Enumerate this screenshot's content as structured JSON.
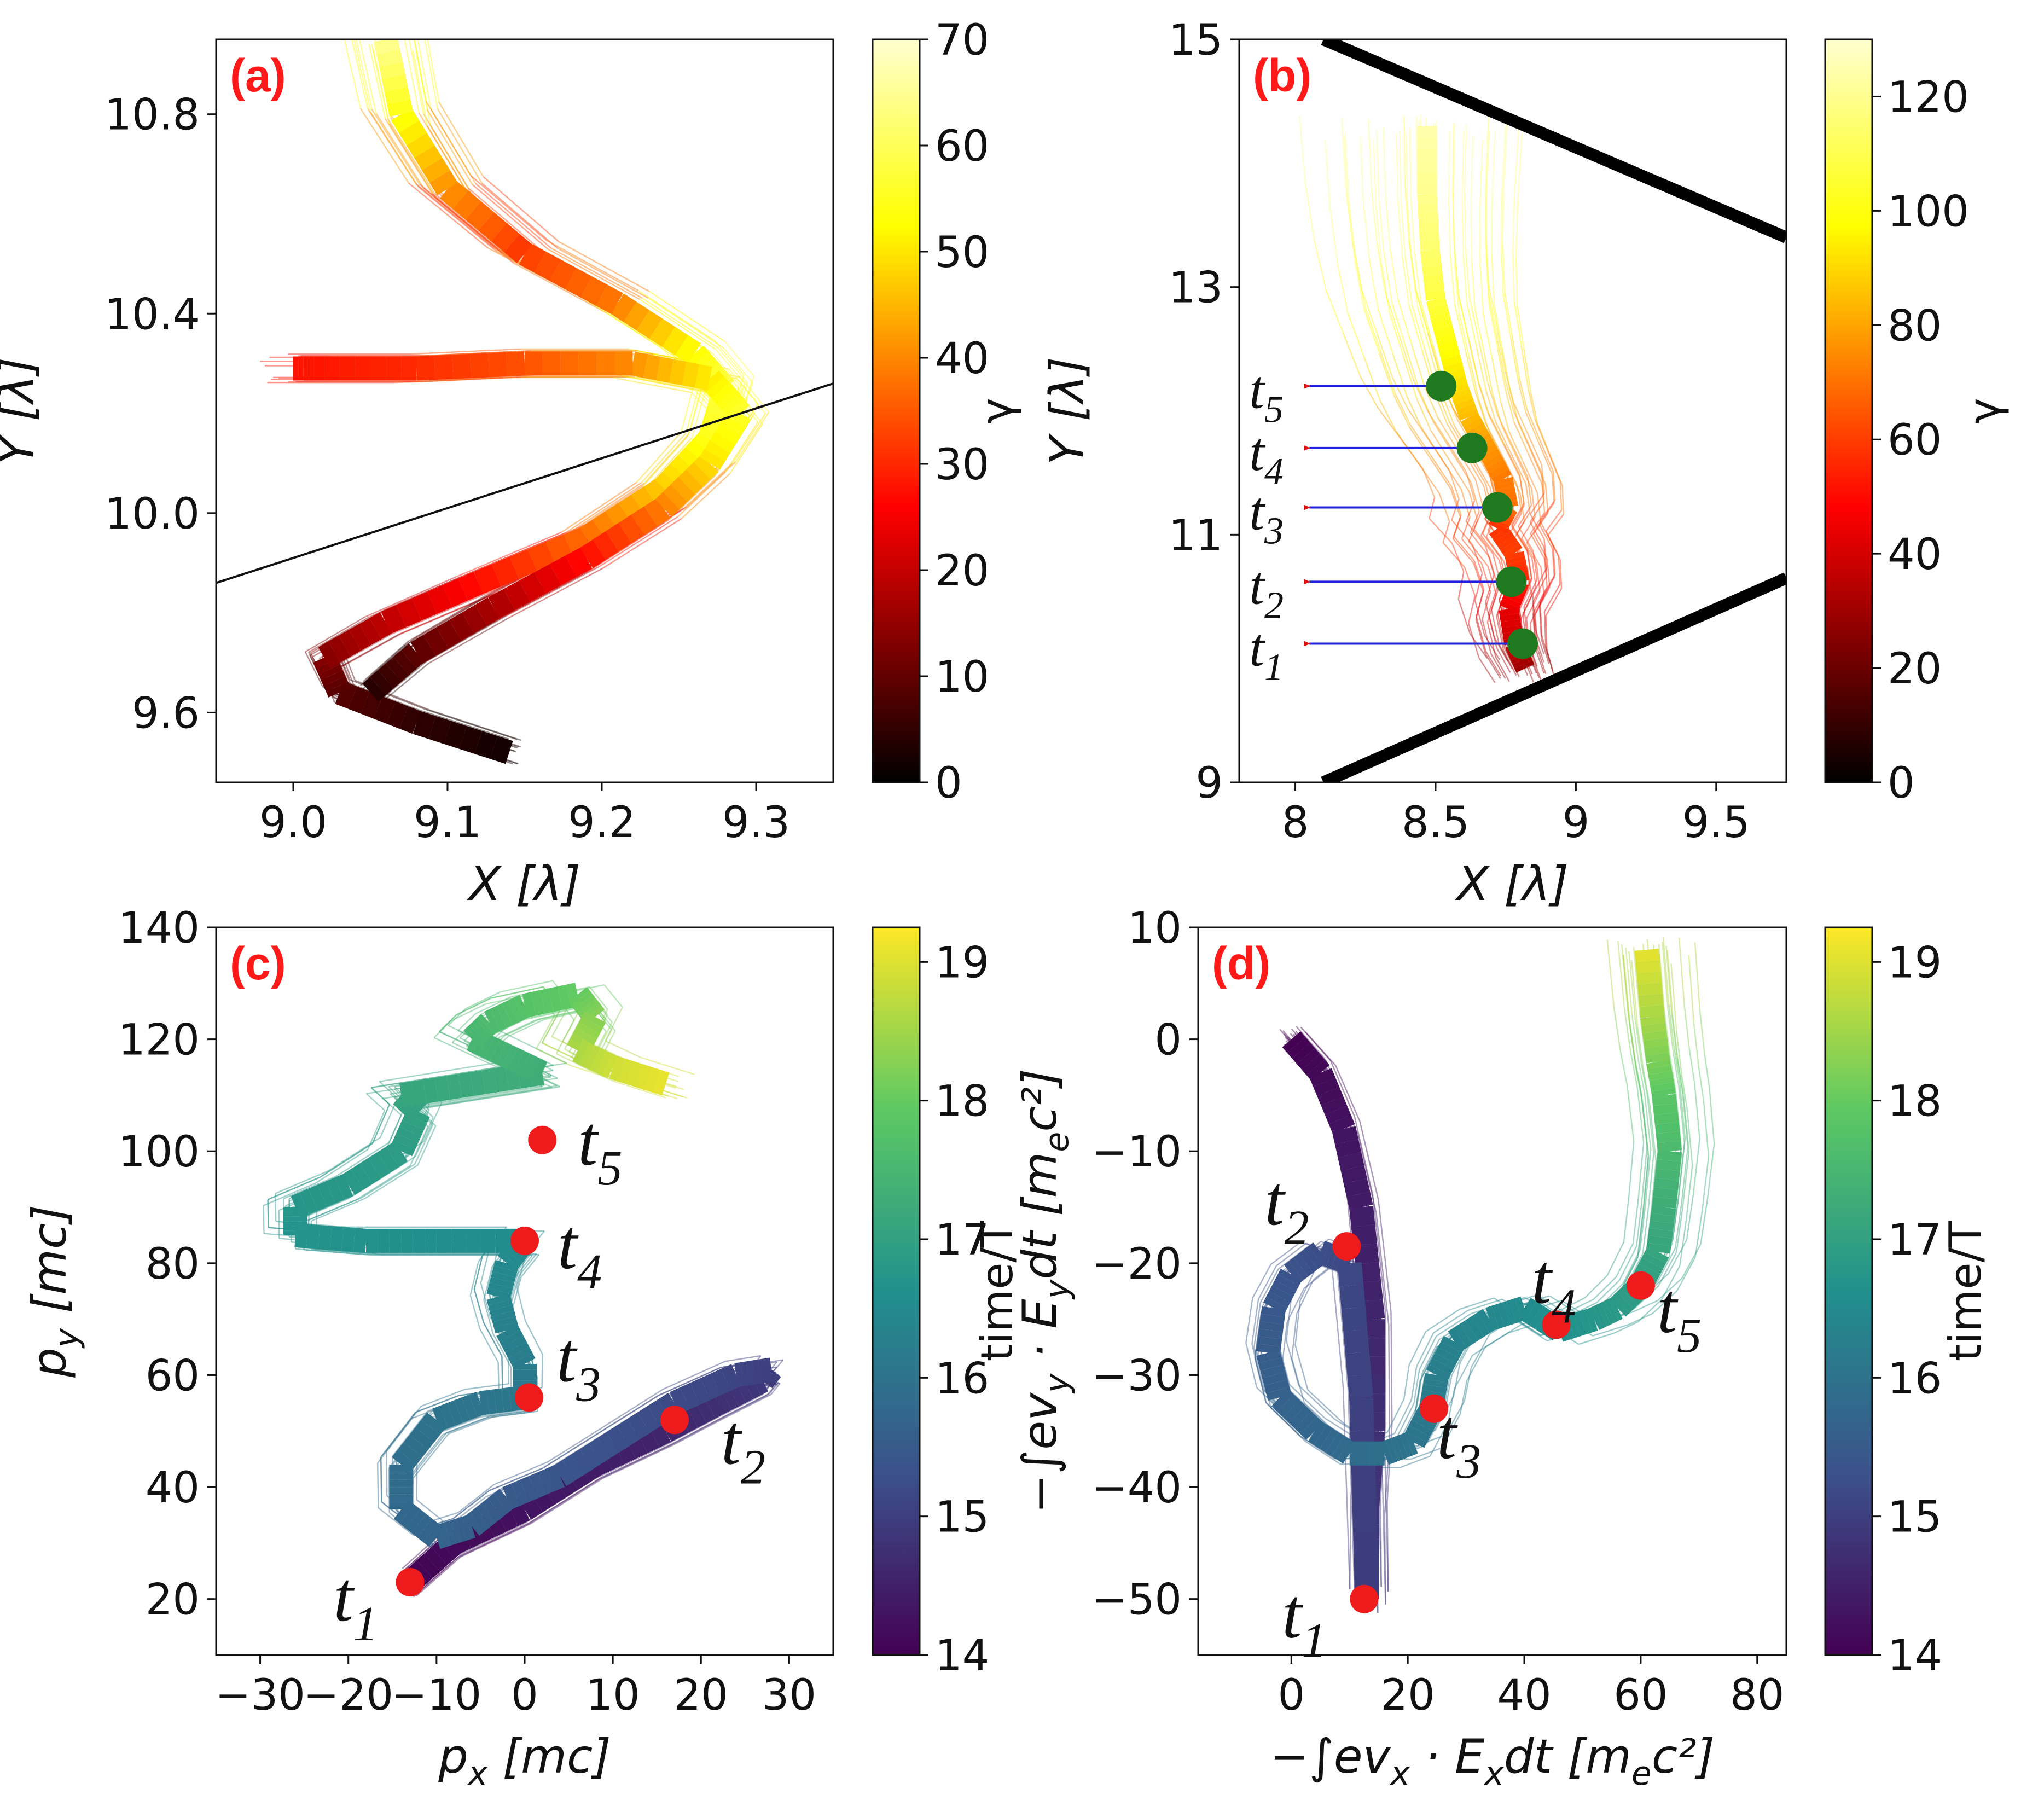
{
  "colors": {
    "panel_label": "#ff1a1a",
    "marker_red": "#ee1c1c",
    "marker_green": "#1f7a1f",
    "arrow_blue": "#2222dd",
    "axis": "#111111"
  },
  "chart_data": [
    {
      "id": "a",
      "type": "line",
      "panel_label": "(a)",
      "xlabel": "X  [λ]",
      "ylabel": "Y [λ]",
      "xlim": [
        8.95,
        9.35
      ],
      "ylim": [
        9.46,
        10.95
      ],
      "xticks": [
        9.0,
        9.1,
        9.2,
        9.3
      ],
      "xtick_labels": [
        "9.0",
        "9.1",
        "9.2",
        "9.3"
      ],
      "yticks": [
        9.6,
        10.0,
        10.4,
        10.8
      ],
      "ytick_labels": [
        "9.6",
        "10.0",
        "10.4",
        "10.8"
      ],
      "colormap": "hot",
      "colorbar": {
        "label": "γ",
        "range": [
          0,
          70
        ],
        "ticks": [
          0,
          10,
          20,
          30,
          40,
          50,
          60,
          70
        ],
        "tick_labels": [
          "0",
          "10",
          "20",
          "30",
          "40",
          "50",
          "60",
          "70"
        ]
      },
      "reference_line": {
        "x": [
          8.95,
          9.35
        ],
        "y": [
          9.86,
          10.26
        ]
      },
      "series": [
        {
          "name": "trajectory-1",
          "x": [
            9.14,
            9.08,
            9.03,
            9.02,
            9.06,
            9.12,
            9.19,
            9.24,
            9.27,
            9.28,
            9.26,
            9.21,
            9.15,
            9.1,
            9.07,
            9.06
          ],
          "y": [
            9.52,
            9.58,
            9.64,
            9.71,
            9.78,
            9.86,
            9.95,
            10.05,
            10.15,
            10.25,
            10.32,
            10.42,
            10.52,
            10.65,
            10.8,
            10.95
          ],
          "c": [
            2,
            5,
            9,
            14,
            20,
            28,
            38,
            48,
            55,
            58,
            52,
            38,
            32,
            42,
            55,
            66
          ]
        },
        {
          "name": "trajectory-2",
          "x": [
            9.05,
            9.08,
            9.13,
            9.19,
            9.24,
            9.27,
            9.29,
            9.27,
            9.22,
            9.15,
            9.08,
            9.02,
            9.0
          ],
          "y": [
            9.64,
            9.72,
            9.81,
            9.91,
            10.01,
            10.1,
            10.2,
            10.27,
            10.3,
            10.3,
            10.29,
            10.29,
            10.29
          ],
          "c": [
            4,
            10,
            18,
            28,
            40,
            50,
            56,
            50,
            40,
            34,
            30,
            28,
            28
          ]
        }
      ]
    },
    {
      "id": "b",
      "type": "line",
      "panel_label": "(b)",
      "xlabel": "X  [λ]",
      "ylabel": "Y [λ]",
      "xlim": [
        7.8,
        9.75
      ],
      "ylim": [
        9,
        15
      ],
      "xticks": [
        8,
        8.5,
        9,
        9.5
      ],
      "xtick_labels": [
        "8",
        "8.5",
        "9",
        "9.5"
      ],
      "yticks": [
        9,
        11,
        13,
        15
      ],
      "ytick_labels": [
        "9",
        "11",
        "13",
        "15"
      ],
      "colormap": "hot",
      "colorbar": {
        "label": "γ",
        "range": [
          0,
          130
        ],
        "ticks": [
          0,
          20,
          40,
          60,
          80,
          100,
          120
        ],
        "tick_labels": [
          "0",
          "20",
          "40",
          "60",
          "80",
          "100",
          "120"
        ]
      },
      "boundary_lines": [
        {
          "x": [
            8.1,
            9.75
          ],
          "y": [
            15.0,
            13.4
          ]
        },
        {
          "x": [
            8.1,
            9.75
          ],
          "y": [
            9.0,
            10.65
          ]
        }
      ],
      "series": [
        {
          "name": "main-trajectory",
          "x": [
            8.82,
            8.78,
            8.76,
            8.8,
            8.78,
            8.72,
            8.76,
            8.74,
            8.68,
            8.62,
            8.58,
            8.54,
            8.5,
            8.48,
            8.47,
            8.47
          ],
          "y": [
            9.92,
            10.12,
            10.4,
            10.62,
            10.85,
            11.05,
            11.22,
            11.45,
            11.7,
            11.95,
            12.2,
            12.55,
            12.9,
            13.3,
            13.75,
            14.3
          ],
          "c": [
            30,
            38,
            45,
            55,
            60,
            58,
            70,
            72,
            78,
            85,
            92,
            100,
            108,
            115,
            120,
            125
          ]
        }
      ],
      "time_markers": [
        {
          "label": "t",
          "sub": "1",
          "x": 8.81,
          "y": 10.12
        },
        {
          "label": "t",
          "sub": "2",
          "x": 8.77,
          "y": 10.62
        },
        {
          "label": "t",
          "sub": "3",
          "x": 8.72,
          "y": 11.22
        },
        {
          "label": "t",
          "sub": "4",
          "x": 8.63,
          "y": 11.7
        },
        {
          "label": "t",
          "sub": "5",
          "x": 8.52,
          "y": 12.2
        }
      ],
      "arrow_tail_x": 8.05
    },
    {
      "id": "c",
      "type": "line",
      "panel_label": "(c)",
      "xlabel": "p",
      "xlabel_sub": "x",
      "xlabel_unit": "  [mc]",
      "ylabel": "p",
      "ylabel_sub": "y",
      "ylabel_unit": "  [mc]",
      "xlim": [
        -35,
        35
      ],
      "ylim": [
        10,
        140
      ],
      "xticks": [
        -30,
        -20,
        -10,
        0,
        10,
        20,
        30
      ],
      "xtick_labels": [
        "−30",
        "−20",
        "−10",
        "0",
        "10",
        "20",
        "30"
      ],
      "yticks": [
        20,
        40,
        60,
        80,
        100,
        120,
        140
      ],
      "ytick_labels": [
        "20",
        "40",
        "60",
        "80",
        "100",
        "120",
        "140"
      ],
      "colormap": "viridis",
      "colorbar": {
        "label": "time/T",
        "range": [
          14,
          19.25
        ],
        "ticks": [
          14,
          15,
          16,
          17,
          18,
          19
        ],
        "tick_labels": [
          "14",
          "15",
          "16",
          "17",
          "18",
          "19"
        ]
      },
      "series": [
        {
          "name": "momentum-trajectory",
          "x": [
            -13,
            -8,
            0,
            8,
            16,
            22,
            27,
            28,
            24,
            17,
            10,
            4,
            -2,
            -6,
            -10,
            -14,
            -14,
            -10,
            -5,
            0,
            0,
            -2,
            -3,
            -2,
            0,
            -10,
            -18,
            -26,
            -26,
            -20,
            -14,
            -12,
            -14,
            -6,
            2,
            -2,
            -6,
            -4,
            0,
            6,
            8,
            6,
            10,
            16
          ],
          "y": [
            23,
            30,
            36,
            44,
            50,
            55,
            59,
            61,
            60,
            55,
            48,
            42,
            38,
            33,
            31,
            36,
            44,
            52,
            55,
            56,
            62,
            68,
            74,
            80,
            84,
            84,
            84,
            85,
            90,
            94,
            100,
            107,
            110,
            112,
            114,
            117,
            120,
            123,
            126,
            128,
            124,
            118,
            115,
            112
          ],
          "c": [
            14.05,
            14.15,
            14.3,
            14.45,
            14.6,
            14.75,
            14.9,
            15.0,
            15.1,
            15.2,
            15.3,
            15.4,
            15.5,
            15.6,
            15.7,
            15.8,
            15.9,
            16.0,
            16.05,
            16.1,
            16.2,
            16.3,
            16.4,
            16.5,
            16.55,
            16.6,
            16.65,
            16.7,
            16.75,
            16.8,
            16.9,
            17.0,
            17.1,
            17.2,
            17.3,
            17.4,
            17.5,
            17.6,
            17.8,
            18.0,
            18.3,
            18.6,
            18.9,
            19.1
          ]
        }
      ],
      "time_markers": [
        {
          "label": "t",
          "sub": "1",
          "x": -13,
          "y": 23
        },
        {
          "label": "t",
          "sub": "2",
          "x": 17,
          "y": 52
        },
        {
          "label": "t",
          "sub": "3",
          "x": 0.5,
          "y": 56
        },
        {
          "label": "t",
          "sub": "4",
          "x": 0,
          "y": 84
        },
        {
          "label": "t",
          "sub": "5",
          "x": 2,
          "y": 102
        }
      ]
    },
    {
      "id": "d",
      "type": "line",
      "panel_label": "(d)",
      "xlabel": "−∫ev",
      "xlabel_sub": "x",
      "xlabel_rest": " · E",
      "xlabel_sub2": "x",
      "xlabel_unit": "dt  [m",
      "xlabel_unit_sub": "e",
      "xlabel_unit_end": "c²]",
      "ylabel": "−∫ev",
      "ylabel_sub": "y",
      "ylabel_rest": " · E",
      "ylabel_sub2": "y",
      "ylabel_unit": "dt  [m",
      "ylabel_unit_sub": "e",
      "ylabel_unit_end": "c²]",
      "xlim": [
        -16,
        85
      ],
      "ylim": [
        -55,
        10
      ],
      "xticks": [
        0,
        20,
        40,
        60,
        80
      ],
      "xtick_labels": [
        "0",
        "20",
        "40",
        "60",
        "80"
      ],
      "yticks": [
        -50,
        -40,
        -30,
        -20,
        -10,
        0,
        10
      ],
      "ytick_labels": [
        "−50",
        "−40",
        "−30",
        "−20",
        "−10",
        "0",
        "10"
      ],
      "colormap": "viridis",
      "colorbar": {
        "label": "time/T",
        "range": [
          14,
          19.25
        ],
        "ticks": [
          14,
          15,
          16,
          17,
          18,
          19
        ],
        "tick_labels": [
          "14",
          "15",
          "16",
          "17",
          "18",
          "19"
        ]
      },
      "series": [
        {
          "name": "work-trajectory",
          "x": [
            0,
            5,
            9,
            12,
            14,
            14,
            13,
            13,
            12,
            10,
            5,
            0,
            -3,
            -4,
            -2,
            4,
            10,
            16,
            21,
            24,
            25,
            28,
            34,
            40,
            46,
            52,
            56,
            60,
            63,
            64,
            65,
            64,
            63,
            62,
            61
          ],
          "y": [
            0,
            -3,
            -8,
            -15,
            -25,
            -35,
            -42,
            -50,
            -32,
            -20,
            -19,
            -21,
            -24,
            -28,
            -32,
            -35,
            -37,
            -37,
            -36,
            -33,
            -30,
            -27,
            -25,
            -24,
            -26,
            -25,
            -24,
            -22,
            -19,
            -15,
            -10,
            -5,
            -2,
            2,
            8
          ],
          "c": [
            14.0,
            14.15,
            14.3,
            14.45,
            14.6,
            14.75,
            14.85,
            14.95,
            15.05,
            15.15,
            15.25,
            15.35,
            15.45,
            15.55,
            15.65,
            15.75,
            15.85,
            15.95,
            16.05,
            16.15,
            16.25,
            16.35,
            16.45,
            16.55,
            16.65,
            16.75,
            16.85,
            16.95,
            17.1,
            17.3,
            17.6,
            17.9,
            18.2,
            18.6,
            19.1
          ]
        }
      ],
      "time_markers": [
        {
          "label": "t",
          "sub": "1",
          "x": 12.5,
          "y": -50
        },
        {
          "label": "t",
          "sub": "2",
          "x": 9.5,
          "y": -18.5
        },
        {
          "label": "t",
          "sub": "3",
          "x": 24.5,
          "y": -33
        },
        {
          "label": "t",
          "sub": "4",
          "x": 45.5,
          "y": -25.5
        },
        {
          "label": "t",
          "sub": "5",
          "x": 60,
          "y": -22
        }
      ]
    }
  ]
}
